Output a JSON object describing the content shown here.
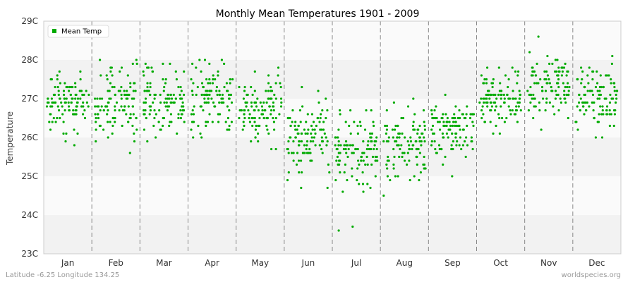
{
  "chart_data": {
    "type": "scatter",
    "title": "Monthly Mean Temperatures 1901 - 2009",
    "xlabel": "",
    "ylabel": "Temperature",
    "y_ticks": [
      "23C",
      "24C",
      "25C",
      "26C",
      "27C",
      "28C",
      "29C"
    ],
    "ylim": [
      23,
      29
    ],
    "categories": [
      "Jan",
      "Feb",
      "Mar",
      "Apr",
      "May",
      "Jun",
      "Jul",
      "Aug",
      "Sep",
      "Oct",
      "Nov",
      "Dec"
    ],
    "legend": {
      "label": "Mean Temp",
      "placement": "top-left"
    },
    "point_color": "#00aa00",
    "grid_band_colors": [
      "#f2f2f2",
      "#fafafa"
    ],
    "month_stats": [
      {
        "month": "Jan",
        "center": 26.9,
        "spread": 0.38,
        "min": 25.8,
        "max": 27.7
      },
      {
        "month": "Feb",
        "center": 26.9,
        "spread": 0.45,
        "min": 25.6,
        "max": 28.0
      },
      {
        "month": "Mar",
        "center": 27.0,
        "spread": 0.4,
        "min": 25.9,
        "max": 27.9
      },
      {
        "month": "Apr",
        "center": 27.0,
        "spread": 0.38,
        "min": 26.0,
        "max": 28.0
      },
      {
        "month": "May",
        "center": 26.7,
        "spread": 0.45,
        "min": 25.7,
        "max": 27.8
      },
      {
        "month": "Jun",
        "center": 26.0,
        "spread": 0.48,
        "min": 24.7,
        "max": 27.3
      },
      {
        "month": "Jul",
        "center": 25.7,
        "spread": 0.5,
        "min": 23.6,
        "max": 26.7
      },
      {
        "month": "Aug",
        "center": 25.8,
        "spread": 0.45,
        "min": 24.5,
        "max": 27.0
      },
      {
        "month": "Sep",
        "center": 26.2,
        "spread": 0.35,
        "min": 25.0,
        "max": 27.1
      },
      {
        "month": "Oct",
        "center": 27.0,
        "spread": 0.35,
        "min": 26.1,
        "max": 27.8
      },
      {
        "month": "Nov",
        "center": 27.3,
        "spread": 0.38,
        "min": 26.2,
        "max": 28.6
      },
      {
        "month": "Dec",
        "center": 27.0,
        "spread": 0.4,
        "min": 26.0,
        "max": 28.1
      }
    ],
    "samples_per_month": 109
  },
  "footer": {
    "location": "Latitude -6.25 Longitude 134.25",
    "source": "worldspecies.org"
  }
}
